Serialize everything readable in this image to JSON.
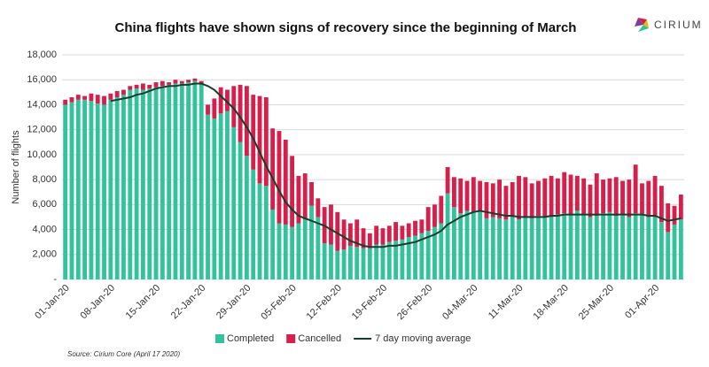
{
  "chart_data": {
    "type": "stacked_bar_line",
    "title": "China flights have shown signs of recovery since the beginning of March",
    "logo": "CIRIUM",
    "ylabel": "Number of flights",
    "source": "Source: Cirium Core (April 17 2020)",
    "categories": [
      "01-Jan-20",
      null,
      null,
      null,
      null,
      null,
      null,
      "08-Jan-20",
      null,
      null,
      null,
      null,
      null,
      null,
      "15-Jan-20",
      null,
      null,
      null,
      null,
      null,
      null,
      "22-Jan-20",
      null,
      null,
      null,
      null,
      null,
      null,
      "29-Jan-20",
      null,
      null,
      null,
      null,
      null,
      null,
      "05-Feb-20",
      null,
      null,
      null,
      null,
      null,
      null,
      "12-Feb-20",
      null,
      null,
      null,
      null,
      null,
      null,
      "19-Feb-20",
      null,
      null,
      null,
      null,
      null,
      null,
      "26-Feb-20",
      null,
      null,
      null,
      null,
      null,
      null,
      "04-Mar-20",
      null,
      null,
      null,
      null,
      null,
      null,
      "11-Mar-20",
      null,
      null,
      null,
      null,
      null,
      null,
      "18-Mar-20",
      null,
      null,
      null,
      null,
      null,
      null,
      "25-Mar-20",
      null,
      null,
      null,
      null,
      null,
      null,
      "01-Apr-20",
      null,
      null,
      null,
      null
    ],
    "series": [
      {
        "name": "Completed",
        "color": "#33c39c",
        "kind": "bar",
        "values": [
          14000,
          14200,
          14400,
          14400,
          14300,
          14100,
          14000,
          14400,
          14600,
          14800,
          15200,
          15300,
          15200,
          15300,
          15400,
          15500,
          15600,
          15700,
          15700,
          15800,
          15900,
          15600,
          13200,
          12900,
          13300,
          13500,
          12200,
          11000,
          9900,
          8800,
          7700,
          7500,
          5600,
          4500,
          4400,
          4200,
          4500,
          4800,
          5900,
          5000,
          2900,
          2800,
          2300,
          2400,
          2700,
          2600,
          2500,
          2500,
          2800,
          2800,
          3000,
          3100,
          3200,
          3400,
          3500,
          3700,
          3900,
          4200,
          4500,
          6900,
          5800,
          5300,
          5500,
          5400,
          5400,
          4900,
          5000,
          4900,
          4800,
          5000,
          4800,
          5000,
          4900,
          5100,
          5000,
          5000,
          5200,
          5300,
          5200,
          5500,
          5200,
          5000,
          5100,
          5300,
          5400,
          5100,
          5200,
          5000,
          5300,
          5200,
          5000,
          5000,
          4600,
          3800,
          4400,
          4800
        ]
      },
      {
        "name": "Cancelled",
        "color": "#d61f4b",
        "kind": "bar",
        "values": [
          400,
          400,
          400,
          300,
          600,
          700,
          700,
          500,
          500,
          400,
          300,
          300,
          500,
          300,
          400,
          400,
          200,
          300,
          200,
          200,
          200,
          300,
          800,
          1600,
          2100,
          1700,
          3300,
          4600,
          5600,
          6000,
          7000,
          7100,
          6500,
          7400,
          6800,
          5700,
          3800,
          3700,
          1900,
          1500,
          2900,
          3200,
          3100,
          2400,
          1800,
          2200,
          1600,
          1200,
          1500,
          1300,
          1300,
          1500,
          1100,
          1100,
          1200,
          1100,
          1900,
          1800,
          2200,
          2100,
          2400,
          2800,
          2400,
          2800,
          2500,
          2900,
          2700,
          3100,
          2700,
          2800,
          3500,
          3200,
          2800,
          2800,
          3100,
          3300,
          2900,
          3300,
          3200,
          2800,
          2900,
          2600,
          3400,
          2700,
          2700,
          3100,
          2700,
          3000,
          3900,
          2500,
          2900,
          3300,
          2900,
          2300,
          1500,
          2000
        ]
      },
      {
        "name": "7 day moving average",
        "color": "#173d2c",
        "kind": "line",
        "values": [
          null,
          null,
          null,
          null,
          null,
          null,
          null,
          14300,
          14400,
          14500,
          14600,
          14800,
          14900,
          15100,
          15300,
          15400,
          15500,
          15500,
          15600,
          15600,
          15700,
          15700,
          15500,
          15200,
          14700,
          14200,
          13700,
          13000,
          12200,
          11300,
          10200,
          9100,
          8100,
          7100,
          6200,
          5600,
          5100,
          4900,
          4700,
          4500,
          4300,
          4000,
          3700,
          3400,
          3100,
          2900,
          2700,
          2600,
          2600,
          2600,
          2700,
          2700,
          2800,
          2900,
          3000,
          3200,
          3400,
          3600,
          3900,
          4400,
          4700,
          5000,
          5200,
          5400,
          5500,
          5400,
          5300,
          5200,
          5100,
          5100,
          5000,
          5000,
          5000,
          5000,
          5000,
          5100,
          5100,
          5200,
          5200,
          5200,
          5200,
          5200,
          5200,
          5200,
          5200,
          5200,
          5200,
          5200,
          5200,
          5200,
          5100,
          5100,
          4900,
          4700,
          4800,
          4900
        ]
      }
    ],
    "ylim": [
      0,
      18000
    ],
    "yticks": [
      {
        "value": 0,
        "label": "-"
      },
      {
        "value": 2000,
        "label": "2,000"
      },
      {
        "value": 4000,
        "label": "4,000"
      },
      {
        "value": 6000,
        "label": "6,000"
      },
      {
        "value": 8000,
        "label": "8,000"
      },
      {
        "value": 10000,
        "label": "10,000"
      },
      {
        "value": 12000,
        "label": "12,000"
      },
      {
        "value": 14000,
        "label": "14,000"
      },
      {
        "value": 16000,
        "label": "16,000"
      },
      {
        "value": 18000,
        "label": "18,000"
      }
    ],
    "grid": true
  }
}
